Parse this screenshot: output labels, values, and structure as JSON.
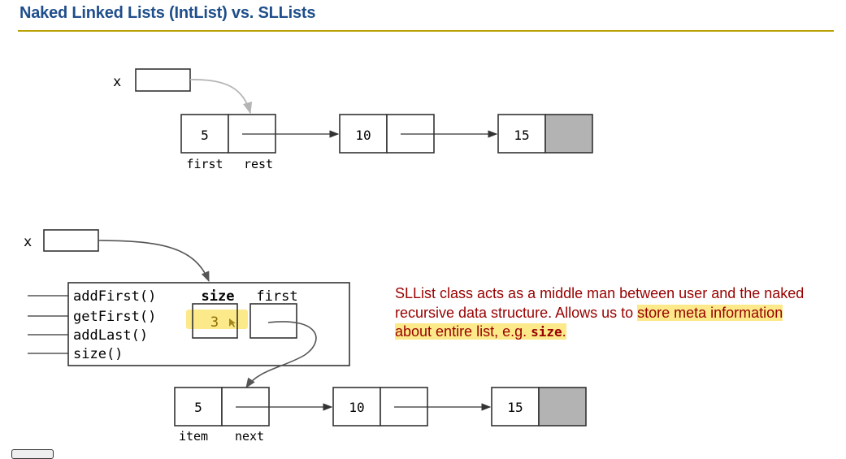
{
  "title": "Naked Linked Lists (IntList) vs. SLLists",
  "intlist": {
    "var_label": "x",
    "nodes": [
      "5",
      "10",
      "15"
    ],
    "field_labels": [
      "first",
      "rest"
    ]
  },
  "sllist": {
    "var_label": "x",
    "methods": [
      "addFirst()",
      "getFirst()",
      "addLast()",
      "size()"
    ],
    "size_label": "size",
    "first_label": "first",
    "size_value": "3",
    "nodes": [
      "5",
      "10",
      "15"
    ],
    "field_labels": [
      "item",
      "next"
    ]
  },
  "note": {
    "part1": "SLList class acts as a middle man between user and the naked recursive data structure. Allows us to ",
    "highlight1": "store meta information about entire list, e.g. ",
    "code": "size",
    "highlight2": "."
  },
  "colors": {
    "title": "#1f4e8c",
    "rule": "#b8a000",
    "note_text": "#990000",
    "highlight": "#fbe98a",
    "null_fill": "#b3b3b3"
  }
}
